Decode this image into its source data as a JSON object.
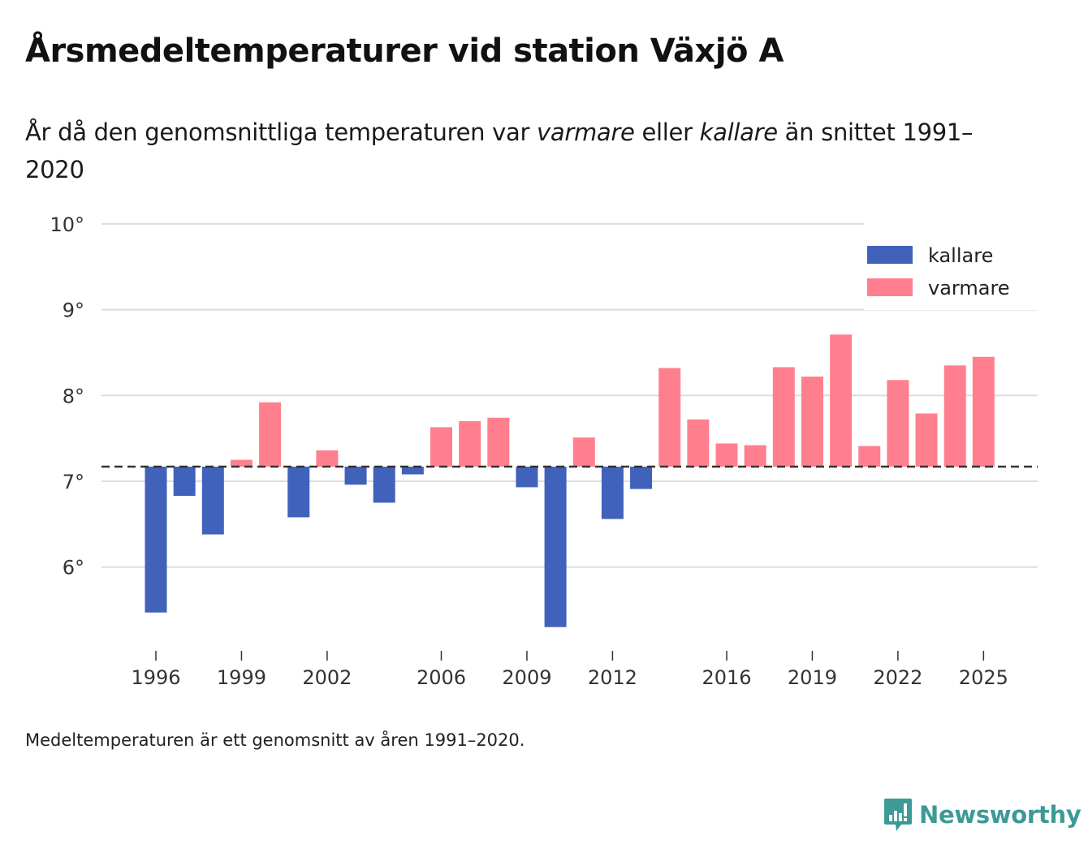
{
  "header": {
    "title": "Årsmedeltemperaturer vid station Växjö A",
    "subtitle_part1": "År då den genomsnittliga temperaturen var ",
    "subtitle_em1": "varmare",
    "subtitle_part2": " eller ",
    "subtitle_em2": "kallare",
    "subtitle_part3": " än snittet 1991–2020"
  },
  "footer": {
    "note": "Medeltemperaturen är ett genomsnitt av åren 1991–2020.",
    "brand": "Newsworthy",
    "brand_icon": "chart-speech-bubble-icon"
  },
  "colors": {
    "colder": "#4062bb",
    "warmer": "#ff7f8e",
    "grid": "#dddddd",
    "baseline": "#333333",
    "brand": "#3d9a96"
  },
  "chart_data": {
    "type": "bar",
    "title": "Årsmedeltemperaturer vid station Växjö A",
    "xlabel": "",
    "ylabel": "",
    "ylim": [
      5.0,
      10.0
    ],
    "yticks": [
      6,
      7,
      8,
      9,
      10
    ],
    "ytick_labels": [
      "6°",
      "7°",
      "8°",
      "9°",
      "10°"
    ],
    "xticks": [
      1996,
      1999,
      2002,
      2006,
      2009,
      2012,
      2016,
      2019,
      2022,
      2025
    ],
    "xtick_labels": [
      "1996",
      "1999",
      "2002",
      "2006",
      "2009",
      "2012",
      "2016",
      "2019",
      "2022",
      "2025"
    ],
    "baseline": 7.17,
    "baseline_label": "snittet 1991–2020",
    "grid": true,
    "legend_position": "top-right",
    "legend": [
      {
        "name": "kallare",
        "color": "#4062bb"
      },
      {
        "name": "varmare",
        "color": "#ff7f8e"
      }
    ],
    "categories": [
      1996,
      1997,
      1998,
      1999,
      2000,
      2001,
      2002,
      2003,
      2004,
      2005,
      2006,
      2007,
      2008,
      2009,
      2010,
      2011,
      2012,
      2013,
      2014,
      2015,
      2016,
      2017,
      2018,
      2019,
      2020,
      2021,
      2022,
      2023,
      2024,
      2025
    ],
    "values": [
      5.47,
      6.83,
      6.38,
      7.25,
      7.92,
      6.58,
      7.36,
      6.96,
      6.75,
      7.08,
      7.63,
      7.7,
      7.74,
      6.93,
      5.3,
      7.51,
      6.56,
      6.91,
      8.32,
      7.72,
      7.44,
      7.42,
      8.33,
      8.22,
      8.71,
      7.41,
      8.18,
      7.79,
      8.35,
      8.45
    ]
  }
}
